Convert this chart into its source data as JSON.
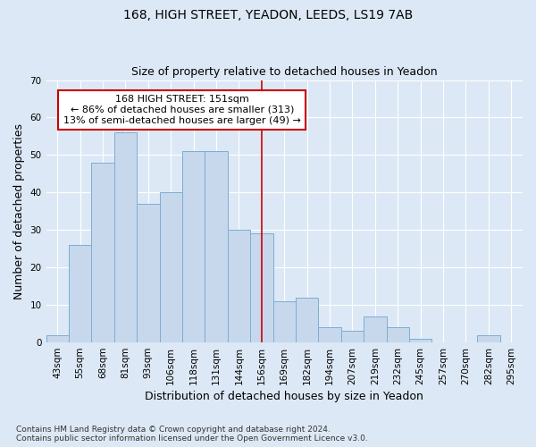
{
  "title1": "168, HIGH STREET, YEADON, LEEDS, LS19 7AB",
  "title2": "Size of property relative to detached houses in Yeadon",
  "xlabel": "Distribution of detached houses by size in Yeadon",
  "ylabel": "Number of detached properties",
  "categories": [
    "43sqm",
    "55sqm",
    "68sqm",
    "81sqm",
    "93sqm",
    "106sqm",
    "118sqm",
    "131sqm",
    "144sqm",
    "156sqm",
    "169sqm",
    "182sqm",
    "194sqm",
    "207sqm",
    "219sqm",
    "232sqm",
    "245sqm",
    "257sqm",
    "270sqm",
    "282sqm",
    "295sqm"
  ],
  "values": [
    2,
    26,
    48,
    56,
    37,
    40,
    51,
    51,
    30,
    29,
    11,
    12,
    4,
    3,
    7,
    4,
    1,
    0,
    0,
    2,
    0
  ],
  "bar_color": "#c8d8ec",
  "bar_edge_color": "#7aaed0",
  "vline_x": 9.0,
  "vline_color": "#cc0000",
  "annotation_text": "168 HIGH STREET: 151sqm\n← 86% of detached houses are smaller (313)\n13% of semi-detached houses are larger (49) →",
  "annotation_box_color": "#ffffff",
  "annotation_box_edge": "#cc0000",
  "ylim": [
    0,
    70
  ],
  "yticks": [
    0,
    10,
    20,
    30,
    40,
    50,
    60,
    70
  ],
  "footnote": "Contains HM Land Registry data © Crown copyright and database right 2024.\nContains public sector information licensed under the Open Government Licence v3.0.",
  "bg_color": "#dce8f5",
  "plot_bg_color": "#dce8f5",
  "grid_color": "#ffffff",
  "title1_fontsize": 10,
  "title2_fontsize": 9,
  "axis_label_fontsize": 9,
  "tick_fontsize": 7.5,
  "footnote_fontsize": 6.5,
  "annotation_fontsize": 8
}
